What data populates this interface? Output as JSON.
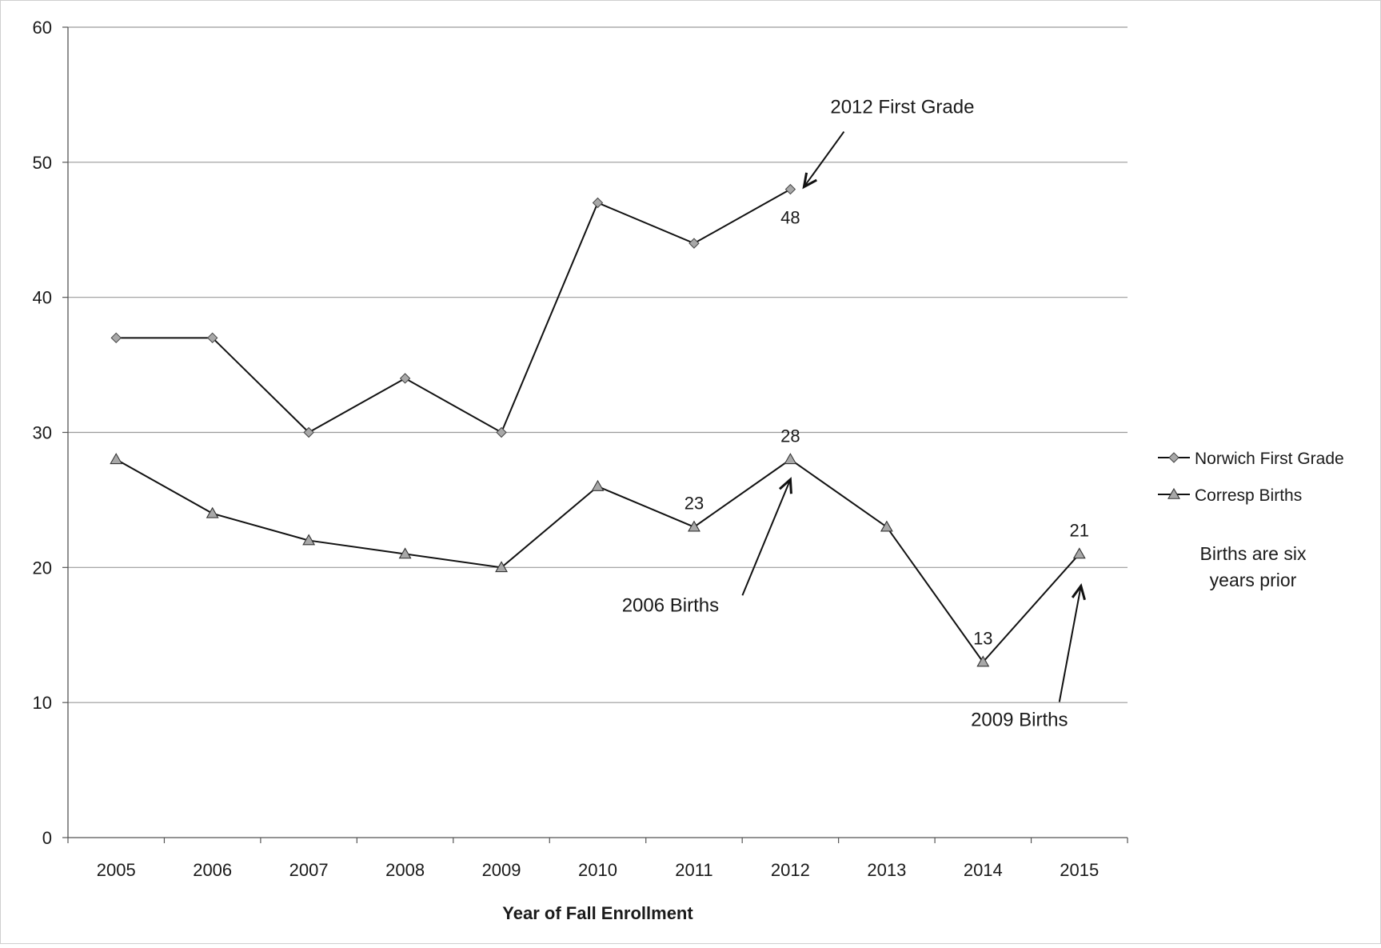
{
  "chart_data": {
    "type": "line",
    "title": "",
    "xlabel": "Year of Fall Enrollment",
    "ylabel": "",
    "categories": [
      "2005",
      "2006",
      "2007",
      "2008",
      "2009",
      "2010",
      "2011",
      "2012",
      "2013",
      "2014",
      "2015"
    ],
    "ylim": [
      0,
      60
    ],
    "yticks": [
      0,
      10,
      20,
      30,
      40,
      50,
      60
    ],
    "grid": true,
    "legend_position": "right",
    "series": [
      {
        "name": "Norwich First Grade",
        "marker": "diamond",
        "color": "#a8a8a8",
        "values": [
          37,
          37,
          30,
          34,
          30,
          47,
          44,
          48,
          null,
          null,
          null
        ]
      },
      {
        "name": "Corresp Births",
        "marker": "triangle",
        "color": "#a8a8a8",
        "values": [
          28,
          24,
          22,
          21,
          20,
          26,
          23,
          28,
          23,
          13,
          21
        ]
      }
    ],
    "data_labels": [
      {
        "series": 0,
        "index": 7,
        "text": "48",
        "where": "below"
      },
      {
        "series": 1,
        "index": 6,
        "text": "23",
        "where": "above"
      },
      {
        "series": 1,
        "index": 7,
        "text": "28",
        "where": "above"
      },
      {
        "series": 1,
        "index": 9,
        "text": "13",
        "where": "above"
      },
      {
        "series": 1,
        "index": 10,
        "text": "21",
        "where": "above"
      }
    ],
    "annotations": [
      {
        "text": "2012 First Grade",
        "points_to": {
          "series": 0,
          "index": 7
        }
      },
      {
        "text": "2006 Births",
        "points_to": {
          "series": 1,
          "index": 7
        }
      },
      {
        "text": "2009 Births",
        "points_to": {
          "series": 1,
          "index": 10
        }
      }
    ],
    "note_lines": [
      "Births are six",
      "years prior"
    ]
  }
}
